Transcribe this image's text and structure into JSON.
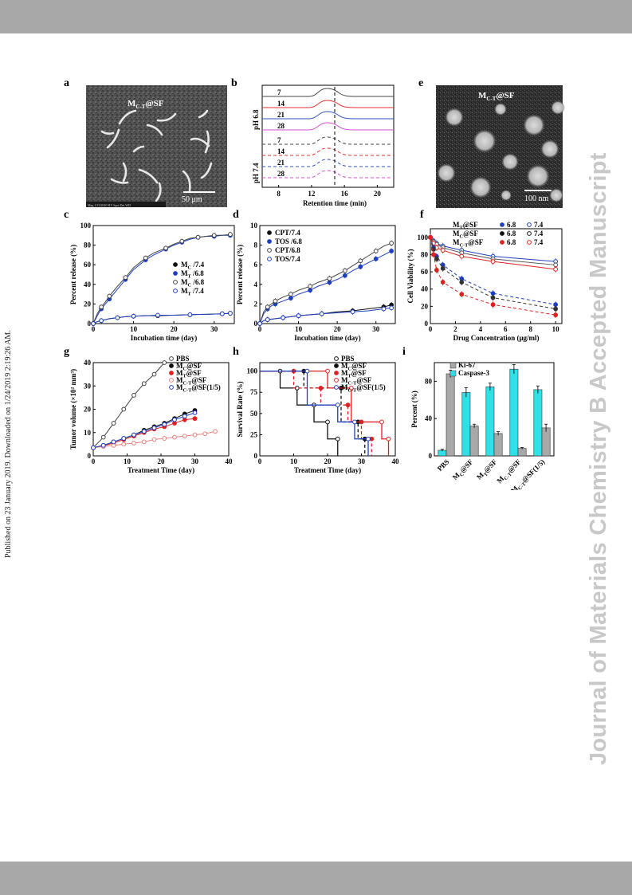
{
  "page": {
    "side_note": "Published on 23 January 2019. Downloaded on 1/24/2019 2:19:26 AM.",
    "watermark": "Journal of Materials Chemistry B Accepted Manuscript",
    "band_color": "#a8a8a8"
  },
  "panels": {
    "a": {
      "letter": "a",
      "label": "MC-T@SF",
      "label_base": "M",
      "label_sub": "C-T",
      "label_rest": "@SF",
      "scalebar": "50 μm",
      "footer": "Mag 1/13/2020 HV Spot Det WD"
    },
    "b": {
      "letter": "b",
      "group_top": "pH 6.8",
      "group_bottom": "pH 7.4",
      "traces": [
        "7",
        "14",
        "21",
        "28",
        "7",
        "14",
        "21",
        "28"
      ],
      "x_ticks": [
        "8",
        "12",
        "16",
        "20"
      ],
      "xlabel": "Retention time (min)",
      "colors": [
        "#444444",
        "#e03030",
        "#3050c0",
        "#d050d0"
      ]
    },
    "e": {
      "letter": "e",
      "label_base": "M",
      "label_sub": "C-T",
      "label_rest": "@SF",
      "scalebar": "100 nm"
    },
    "g_i_colors": {
      "black": "#111111",
      "blue": "#1f3fbf",
      "red": "#e02020",
      "pink": "#e88080",
      "cyan": "#30e0e8",
      "grey": "#a8a8a8"
    }
  },
  "chart_data": [
    {
      "panel": "c",
      "type": "line",
      "xlabel": "Incubation time (day)",
      "ylabel": "Percent release (%)",
      "xlim": [
        0,
        35
      ],
      "ylim": [
        0,
        100
      ],
      "x_ticks": [
        0,
        10,
        20,
        30
      ],
      "y_ticks": [
        0,
        20,
        40,
        60,
        80,
        100
      ],
      "legend": [
        "MC /7.4",
        "MT /6.8",
        "MC /6.8",
        "MT /7.4"
      ],
      "legend_items": [
        {
          "base": "M",
          "sub": "C",
          "rest": " /7.4",
          "filled": true,
          "color": "#111111"
        },
        {
          "base": "M",
          "sub": "T",
          "rest": " /6.8",
          "filled": true,
          "color": "#1f3fbf"
        },
        {
          "base": "M",
          "sub": "C",
          "rest": " /6.8",
          "filled": false,
          "color": "#444444"
        },
        {
          "base": "M",
          "sub": "T",
          "rest": " /7.4",
          "filled": false,
          "color": "#1f3fbf"
        }
      ],
      "series": [
        {
          "name": "MC /7.4",
          "x": [
            0,
            1,
            2,
            4,
            6,
            8,
            10,
            13,
            16,
            20,
            24,
            28,
            32,
            34
          ],
          "y": [
            0,
            2,
            3,
            5,
            6,
            7,
            7.5,
            8,
            8,
            8.5,
            9,
            9.5,
            10,
            10.5
          ]
        },
        {
          "name": "MT /6.8",
          "x": [
            0,
            1,
            2,
            3,
            4,
            6,
            8,
            10,
            13,
            15,
            18,
            20,
            22,
            24,
            26,
            28,
            30,
            32,
            34
          ],
          "y": [
            0,
            8,
            15,
            20,
            25,
            35,
            45,
            55,
            65,
            70,
            76,
            80,
            83,
            86,
            88,
            89,
            89,
            90,
            90
          ]
        },
        {
          "name": "MC /6.8",
          "x": [
            0,
            1,
            2,
            3,
            4,
            6,
            8,
            10,
            13,
            15,
            18,
            20,
            22,
            24,
            26,
            28,
            30,
            32,
            34
          ],
          "y": [
            0,
            10,
            17,
            22,
            28,
            38,
            47,
            57,
            67,
            72,
            77,
            81,
            84,
            87,
            88,
            89,
            90,
            90,
            91
          ]
        },
        {
          "name": "MT /7.4",
          "x": [
            0,
            1,
            2,
            4,
            6,
            8,
            10,
            13,
            16,
            20,
            24,
            28,
            32,
            34
          ],
          "y": [
            0,
            2,
            3,
            5,
            6,
            7,
            7.5,
            8,
            8.5,
            8.5,
            9,
            9.5,
            10,
            10.5
          ]
        }
      ]
    },
    {
      "panel": "d",
      "type": "line",
      "xlabel": "Incubation time (day)",
      "ylabel": "Percent release (%)",
      "xlim": [
        0,
        35
      ],
      "ylim": [
        0,
        10
      ],
      "x_ticks": [
        0,
        10,
        20,
        30
      ],
      "y_ticks": [
        0,
        2,
        4,
        6,
        8,
        10
      ],
      "legend": [
        "CPT/7.4",
        "TOS /6.8",
        "CPT/6.8",
        "TOS/7.4"
      ],
      "series": [
        {
          "name": "CPT/7.4",
          "x": [
            0,
            1,
            2,
            4,
            6,
            8,
            10,
            13,
            16,
            20,
            24,
            28,
            32,
            34
          ],
          "y": [
            0,
            0.3,
            0.4,
            0.5,
            0.6,
            0.7,
            0.8,
            0.9,
            1.0,
            1.2,
            1.3,
            1.5,
            1.7,
            1.9
          ]
        },
        {
          "name": "TOS /6.8",
          "x": [
            0,
            1,
            2,
            3,
            4,
            6,
            8,
            10,
            13,
            15,
            18,
            20,
            22,
            24,
            26,
            28,
            30,
            32,
            34
          ],
          "y": [
            0,
            1.0,
            1.5,
            1.8,
            2.0,
            2.3,
            2.6,
            3.0,
            3.4,
            3.8,
            4.2,
            4.5,
            4.9,
            5.4,
            5.8,
            6.2,
            6.6,
            7.0,
            7.4
          ]
        },
        {
          "name": "CPT/6.8",
          "x": [
            0,
            1,
            2,
            3,
            4,
            6,
            8,
            10,
            13,
            15,
            18,
            20,
            22,
            24,
            26,
            28,
            30,
            32,
            34
          ],
          "y": [
            0,
            1.2,
            1.7,
            2.0,
            2.3,
            2.7,
            3.0,
            3.4,
            3.8,
            4.2,
            4.6,
            5.0,
            5.4,
            5.9,
            6.4,
            6.9,
            7.4,
            7.9,
            8.2
          ]
        },
        {
          "name": "TOS/7.4",
          "x": [
            0,
            1,
            2,
            4,
            6,
            8,
            10,
            13,
            16,
            20,
            24,
            28,
            32,
            34
          ],
          "y": [
            0,
            0.3,
            0.4,
            0.5,
            0.6,
            0.7,
            0.8,
            0.9,
            1.0,
            1.1,
            1.2,
            1.3,
            1.5,
            1.6
          ]
        }
      ]
    },
    {
      "panel": "f",
      "type": "line",
      "xlabel": "Drug Concentration (μg/ml)",
      "ylabel": "Cell Viability (%)",
      "xlim": [
        0,
        10.5
      ],
      "ylim": [
        0,
        110
      ],
      "x_ticks": [
        0,
        2,
        4,
        6,
        8,
        10
      ],
      "y_ticks": [
        0,
        20,
        40,
        60,
        80,
        100
      ],
      "legend_rows": [
        {
          "name_base": "M",
          "name_sub": "T",
          "name_rest": "@SF",
          "a": "6.8",
          "b": "7.4",
          "color": "#1f3fbf"
        },
        {
          "name_base": "M",
          "name_sub": "C",
          "name_rest": "@SF",
          "a": "6.8",
          "b": "7.4",
          "color": "#111111"
        },
        {
          "name_base": "M",
          "name_sub": "C-T",
          "name_rest": "@SF",
          "a": "6.8",
          "b": "7.4",
          "color": "#e02020"
        }
      ],
      "series": [
        {
          "name": "MT@SF 7.4",
          "x": [
            0,
            0.25,
            0.5,
            1,
            2.5,
            5,
            10
          ],
          "y": [
            100,
            96,
            93,
            90,
            85,
            78,
            72
          ],
          "color": "#1f3fbf",
          "dashed": false
        },
        {
          "name": "MC@SF 7.4",
          "x": [
            0,
            0.25,
            0.5,
            1,
            2.5,
            5,
            10
          ],
          "y": [
            100,
            95,
            92,
            88,
            82,
            75,
            68
          ],
          "color": "#555555",
          "dashed": false
        },
        {
          "name": "MC-T@SF 7.4",
          "x": [
            0,
            0.25,
            0.5,
            1,
            2.5,
            5,
            10
          ],
          "y": [
            100,
            93,
            88,
            85,
            78,
            72,
            63
          ],
          "color": "#e02020",
          "dashed": false
        },
        {
          "name": "MT@SF 6.8",
          "x": [
            0,
            0.25,
            0.5,
            1,
            2.5,
            5,
            10
          ],
          "y": [
            100,
            88,
            78,
            68,
            52,
            35,
            22
          ],
          "color": "#1f3fbf",
          "dashed": true
        },
        {
          "name": "MC@SF 6.8",
          "x": [
            0,
            0.25,
            0.5,
            1,
            2.5,
            5,
            10
          ],
          "y": [
            100,
            86,
            75,
            64,
            48,
            30,
            17
          ],
          "color": "#333333",
          "dashed": true
        },
        {
          "name": "MC-T@SF 6.8",
          "x": [
            0,
            0.25,
            0.5,
            1,
            2.5,
            5,
            10
          ],
          "y": [
            100,
            80,
            62,
            48,
            34,
            22,
            10
          ],
          "color": "#e02020",
          "dashed": true
        }
      ]
    },
    {
      "panel": "g",
      "type": "line",
      "xlabel": "Treatment Time (day)",
      "ylabel": "Tumor volume (×10² mm³)",
      "xlim": [
        0,
        40
      ],
      "ylim": [
        0,
        40
      ],
      "x_ticks": [
        0,
        10,
        20,
        30,
        40
      ],
      "y_ticks": [
        0,
        10,
        20,
        30,
        40
      ],
      "legend": [
        "PBS",
        "MC@SF",
        "MT@SF",
        "MC-T@SF",
        "MC-T@SF(1/5)"
      ],
      "series": [
        {
          "name": "PBS",
          "x": [
            0,
            3,
            6,
            9,
            12,
            15,
            18,
            21
          ],
          "y": [
            3.5,
            8,
            14,
            20,
            26,
            31,
            35,
            40
          ],
          "color": "#444444",
          "filled": false
        },
        {
          "name": "MC@SF",
          "x": [
            0,
            3,
            6,
            9,
            12,
            15,
            18,
            21,
            24,
            27,
            30
          ],
          "y": [
            3.5,
            4.5,
            6,
            7.5,
            9,
            11,
            12.5,
            14,
            16,
            18,
            19.5
          ],
          "color": "#111111",
          "filled": true
        },
        {
          "name": "MT@SF",
          "x": [
            0,
            3,
            6,
            9,
            12,
            15,
            18,
            21,
            24,
            27,
            30
          ],
          "y": [
            3.5,
            4.3,
            5.5,
            7,
            8.5,
            10,
            11.5,
            12.5,
            14,
            15.5,
            16
          ],
          "color": "#e02020",
          "filled": true
        },
        {
          "name": "MC-T@SF",
          "x": [
            0,
            3,
            6,
            9,
            12,
            15,
            18,
            21,
            24,
            27,
            30,
            33,
            36
          ],
          "y": [
            3.5,
            4,
            4.5,
            5,
            5.5,
            6,
            7,
            7.5,
            8,
            8.5,
            9,
            9.5,
            10.5
          ],
          "color": "#e88080",
          "filled": false
        },
        {
          "name": "MC-T@SF(1/5)",
          "x": [
            0,
            3,
            6,
            9,
            12,
            15,
            18,
            21,
            24,
            27,
            30
          ],
          "y": [
            3.5,
            4.5,
            6,
            7.5,
            9,
            10.5,
            12,
            13.5,
            15.5,
            17,
            18.5
          ],
          "color": "#1f3fbf",
          "filled": false
        }
      ]
    },
    {
      "panel": "h",
      "type": "line",
      "xlabel": "Treatment Time (day)",
      "ylabel": "Survival Rate (%)",
      "xlim": [
        0,
        40
      ],
      "ylim": [
        0,
        110
      ],
      "x_ticks": [
        0,
        10,
        20,
        30,
        40
      ],
      "y_ticks": [
        0,
        25,
        50,
        75,
        100
      ],
      "legend": [
        "PBS",
        "MC@SF",
        "MT@SF",
        "MC-T@SF",
        "MC-T@SF(1/5)"
      ],
      "series": [
        {
          "name": "PBS",
          "x": [
            0,
            6,
            6,
            11,
            11,
            16,
            16,
            20,
            20,
            23,
            23
          ],
          "y": [
            100,
            100,
            80,
            80,
            60,
            60,
            40,
            40,
            20,
            20,
            0
          ],
          "color": "#111111",
          "dashed": false
        },
        {
          "name": "MC@SF",
          "x": [
            0,
            13,
            13,
            24,
            24,
            29,
            29,
            31,
            31
          ],
          "y": [
            100,
            100,
            80,
            80,
            40,
            40,
            20,
            20,
            0
          ],
          "color": "#111111",
          "dashed": true
        },
        {
          "name": "MT@SF",
          "x": [
            0,
            10,
            10,
            18,
            18,
            26,
            26,
            30,
            30,
            33,
            33
          ],
          "y": [
            100,
            100,
            80,
            80,
            60,
            60,
            40,
            40,
            20,
            20,
            0
          ],
          "color": "#e02020",
          "dashed": true
        },
        {
          "name": "MC-T@SF",
          "x": [
            0,
            20,
            20,
            27,
            27,
            36,
            36,
            38,
            38
          ],
          "y": [
            100,
            100,
            80,
            80,
            40,
            40,
            20,
            20,
            0
          ],
          "color": "#e02020",
          "dashed": false
        },
        {
          "name": "MC-T@SF(1/5)",
          "x": [
            0,
            14,
            14,
            23,
            23,
            28,
            28,
            32,
            32
          ],
          "y": [
            100,
            100,
            60,
            60,
            40,
            40,
            20,
            20,
            0
          ],
          "color": "#1f3fbf",
          "dashed": false
        }
      ]
    },
    {
      "panel": "i",
      "type": "bar",
      "ylabel": "Percent (%)",
      "ylim": [
        0,
        100
      ],
      "y_ticks": [
        0,
        40,
        80
      ],
      "categories": [
        "PBS",
        "MC@SF",
        "MT@SF",
        "MC-T@SF",
        "MC-T@SF(1/5)"
      ],
      "legend": [
        "Ki-67",
        "Caspase-3"
      ],
      "series": [
        {
          "name": "Caspase-3",
          "values": [
            6,
            68,
            74,
            93,
            71
          ],
          "errors": [
            1,
            5,
            4,
            5,
            4
          ],
          "color": "#30e0e8"
        },
        {
          "name": "Ki-67",
          "values": [
            88,
            32,
            24,
            8,
            30
          ],
          "errors": [
            4,
            2,
            2,
            1,
            4
          ],
          "color": "#a8a8a8"
        }
      ]
    }
  ]
}
